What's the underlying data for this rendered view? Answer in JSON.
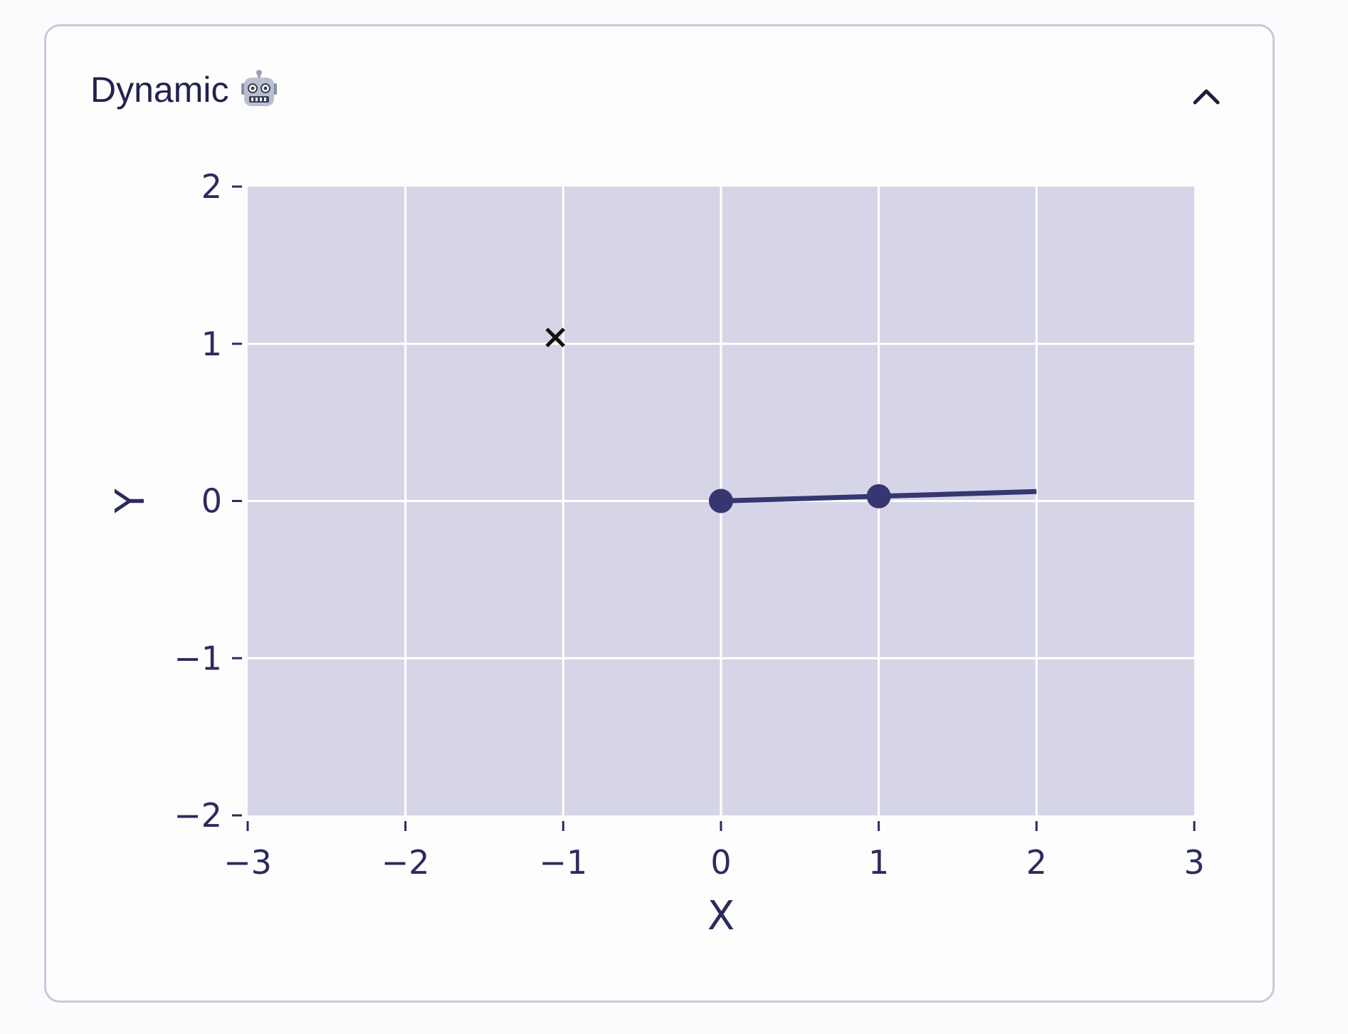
{
  "panel": {
    "title": "Dynamic",
    "title_icon": "robot-icon",
    "collapse_icon": "chevron-up-icon"
  },
  "colors": {
    "plot_background": "#d5d5e7",
    "grid": "#ffffff",
    "line": "#363670",
    "marker": "#363670",
    "cross_marker": "#111111",
    "text": "#2b2b5e"
  },
  "chart_data": {
    "type": "line",
    "title": "",
    "xlabel": "X",
    "ylabel": "Y",
    "xlim": [
      -3,
      3
    ],
    "ylim": [
      -2,
      2
    ],
    "x_ticks": [
      -3,
      -2,
      -1,
      0,
      1,
      2,
      3
    ],
    "y_ticks": [
      -2,
      -1,
      0,
      1,
      2
    ],
    "x_tick_labels": [
      "−3",
      "−2",
      "−1",
      "0",
      "1",
      "2",
      "3"
    ],
    "y_tick_labels": [
      "−2",
      "−1",
      "0",
      "1",
      "2"
    ],
    "grid": true,
    "series": [
      {
        "values_x": [
          0,
          1,
          2
        ],
        "values_y": [
          0,
          0.03,
          0.06
        ],
        "markers_at": [
          0,
          1
        ]
      }
    ],
    "annotations": [
      {
        "marker": "x",
        "x": -1.05,
        "y": 1.04
      }
    ]
  }
}
